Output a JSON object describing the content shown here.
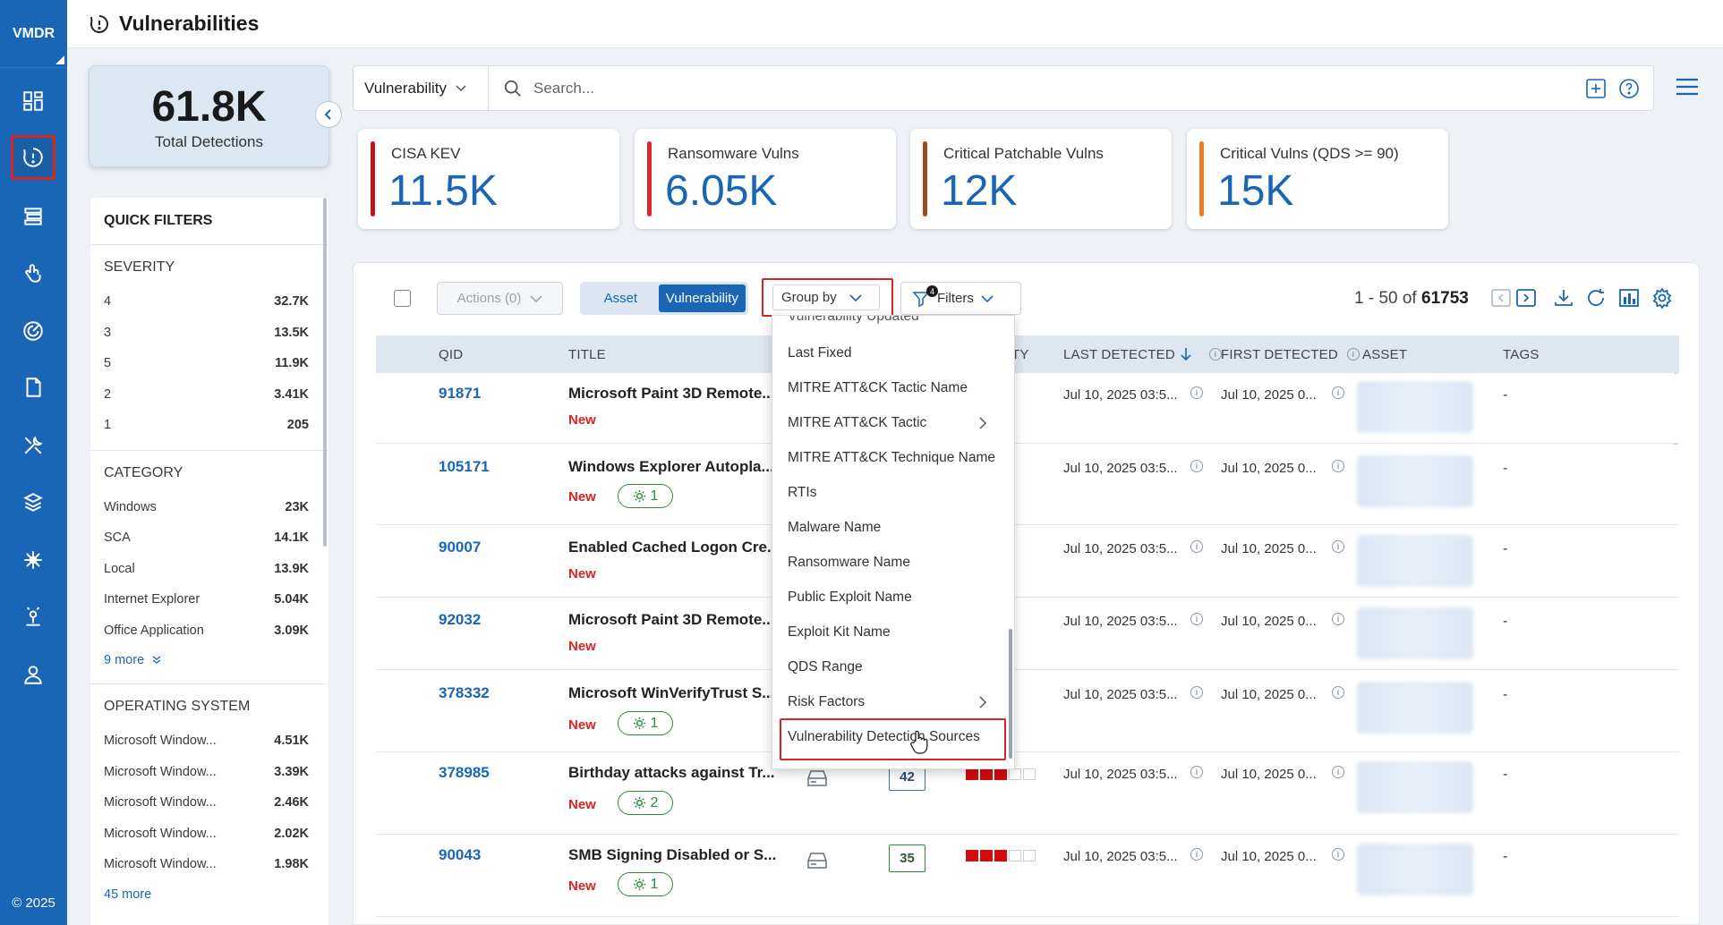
{
  "nav": {
    "brand": "VMDR",
    "copyright": "© 2025",
    "icons": [
      "dashboard-icon",
      "vulnerabilities-icon",
      "inventory-icon",
      "prioritization-icon",
      "scans-icon",
      "reports-icon",
      "remediation-icon",
      "assets-icon",
      "configuration-icon",
      "agents-icon",
      "users-icon"
    ]
  },
  "header": {
    "title": "Vulnerabilities"
  },
  "total": {
    "value": "61.8K",
    "label": "Total Detections"
  },
  "search": {
    "type": "Vulnerability",
    "placeholder": "Search..."
  },
  "kpis": [
    {
      "label": "CISA KEV",
      "value": "11.5K",
      "color": "#c0141c"
    },
    {
      "label": "Ransomware Vulns",
      "value": "6.05K",
      "color": "#d7282c"
    },
    {
      "label": "Critical Patchable Vulns",
      "value": "12K",
      "color": "#a64a1e"
    },
    {
      "label": "Critical Vulns (QDS >= 90)",
      "value": "15K",
      "color": "#ee7b26"
    }
  ],
  "quick_filters": {
    "title": "QUICK FILTERS",
    "severity": {
      "title": "SEVERITY",
      "items": [
        {
          "label": "4",
          "value": "32.7K"
        },
        {
          "label": "3",
          "value": "13.5K"
        },
        {
          "label": "5",
          "value": "11.9K"
        },
        {
          "label": "2",
          "value": "3.41K"
        },
        {
          "label": "1",
          "value": "205"
        }
      ]
    },
    "category": {
      "title": "CATEGORY",
      "more": "9 more",
      "items": [
        {
          "label": "Windows",
          "value": "23K"
        },
        {
          "label": "SCA",
          "value": "14.1K"
        },
        {
          "label": "Local",
          "value": "13.9K"
        },
        {
          "label": "Internet Explorer",
          "value": "5.04K"
        },
        {
          "label": "Office Application",
          "value": "3.09K"
        }
      ]
    },
    "os": {
      "title": "OPERATING SYSTEM",
      "more": "45 more",
      "items": [
        {
          "label": "Microsoft Window...",
          "value": "4.51K"
        },
        {
          "label": "Microsoft Window...",
          "value": "3.39K"
        },
        {
          "label": "Microsoft Window...",
          "value": "2.46K"
        },
        {
          "label": "Microsoft Window...",
          "value": "2.02K"
        },
        {
          "label": "Microsoft Window...",
          "value": "1.98K"
        }
      ]
    }
  },
  "toolbar": {
    "actions": "Actions (0)",
    "toggle": [
      "Asset",
      "Vulnerability"
    ],
    "group_by": "Group by",
    "filters": "Filters",
    "filter_count": "4",
    "pager_range": "1 - 50 of",
    "pager_total": "61753"
  },
  "table": {
    "columns": {
      "qid": "QID",
      "title": "TITLE",
      "severity": "TY",
      "last": "LAST DETECTED",
      "first": "FIRST DETECTED",
      "asset": "ASSET",
      "tags": "TAGS"
    },
    "rows": [
      {
        "qid": "91871",
        "title": "Microsoft Paint 3D Remote...",
        "status": "New",
        "pill": "",
        "last": "Jul 10, 2025 03:5...",
        "first": "Jul 10, 2025 0...",
        "tags": "-"
      },
      {
        "qid": "105171",
        "title": "Windows Explorer Autopla...",
        "status": "New",
        "pill": "1",
        "last": "Jul 10, 2025 03:5...",
        "first": "Jul 10, 2025 0...",
        "tags": "-"
      },
      {
        "qid": "90007",
        "title": "Enabled Cached Logon Cre...",
        "status": "New",
        "pill": "",
        "last": "Jul 10, 2025 03:5...",
        "first": "Jul 10, 2025 0...",
        "tags": "-"
      },
      {
        "qid": "92032",
        "title": "Microsoft Paint 3D Remote...",
        "status": "New",
        "pill": "",
        "last": "Jul 10, 2025 03:5...",
        "first": "Jul 10, 2025 0...",
        "tags": "-"
      },
      {
        "qid": "378332",
        "title": "Microsoft WinVerifyTrust S...",
        "status": "New",
        "pill": "1",
        "last": "Jul 10, 2025 03:5...",
        "first": "Jul 10, 2025 0...",
        "tags": "-"
      },
      {
        "qid": "378985",
        "title": "Birthday attacks against Tr...",
        "status": "New",
        "pill": "2",
        "qds": "42",
        "severity": 3,
        "last": "Jul 10, 2025 03:5...",
        "first": "Jul 10, 2025 0...",
        "tags": "-"
      },
      {
        "qid": "90043",
        "title": "SMB Signing Disabled or S...",
        "status": "New",
        "pill": "1",
        "qds": "35",
        "severity": 3,
        "last": "Jul 10, 2025 03:5...",
        "first": "Jul 10, 2025 0...",
        "tags": "-"
      }
    ]
  },
  "group_by_menu": {
    "items": [
      {
        "label": "Vulnerability Updated",
        "submenu": false
      },
      {
        "label": "Last Fixed",
        "submenu": false
      },
      {
        "label": "MITRE ATT&CK Tactic Name",
        "submenu": false
      },
      {
        "label": "MITRE ATT&CK Tactic",
        "submenu": true
      },
      {
        "label": "MITRE ATT&CK Technique Name",
        "submenu": false
      },
      {
        "label": "RTIs",
        "submenu": false
      },
      {
        "label": "Malware Name",
        "submenu": false
      },
      {
        "label": "Ransomware Name",
        "submenu": false
      },
      {
        "label": "Public Exploit Name",
        "submenu": false
      },
      {
        "label": "Exploit Kit Name",
        "submenu": false
      },
      {
        "label": "QDS Range",
        "submenu": false
      },
      {
        "label": "Risk Factors",
        "submenu": true
      },
      {
        "label": "Vulnerability Detection Sources",
        "submenu": false
      }
    ],
    "highlighted": "Vulnerability Detection Sources"
  }
}
